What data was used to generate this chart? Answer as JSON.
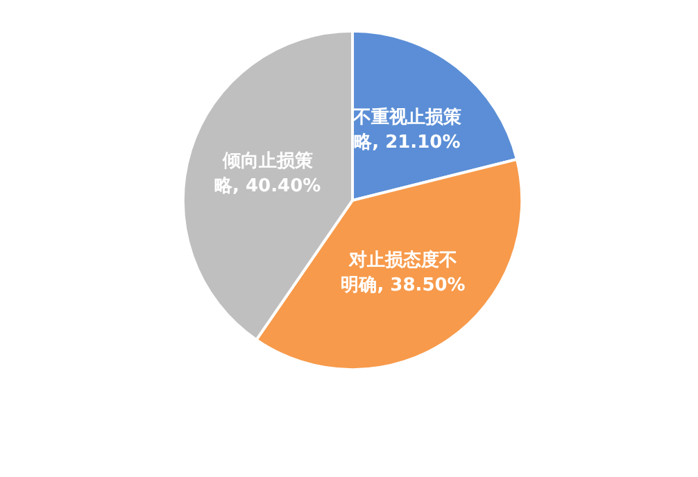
{
  "chart_data": {
    "type": "pie",
    "categories": [
      "不重视止损策略",
      "对止损态度不明确",
      "倾向止损策略"
    ],
    "values": [
      21.1,
      38.5,
      40.4
    ],
    "value_labels": [
      "21.10%",
      "38.50%",
      "40.40%"
    ],
    "colors": [
      "#5b8ed6",
      "#f79a4b",
      "#bfbfbf"
    ],
    "legend": false
  }
}
